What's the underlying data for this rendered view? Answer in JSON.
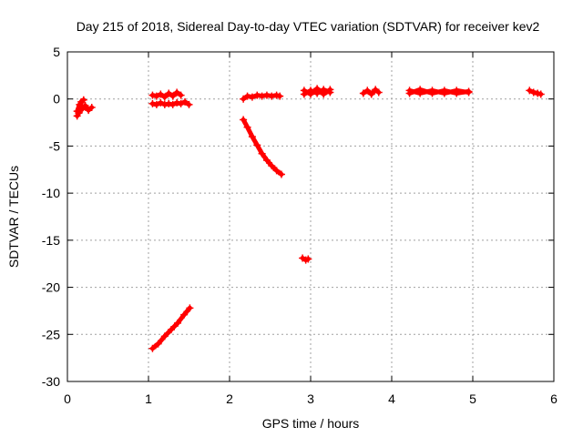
{
  "chart_data": {
    "type": "scatter",
    "title": "Day 215 of 2018, Sidereal Day-to-day VTEC variation (SDTVAR) for receiver kev2",
    "xlabel": "GPS time / hours",
    "ylabel": "SDTVAR / TECUs",
    "xlim": [
      0,
      6
    ],
    "ylim": [
      -30,
      5
    ],
    "xticks": [
      "0",
      "1",
      "2",
      "3",
      "4",
      "5",
      "6"
    ],
    "yticks": [
      "5",
      "0",
      "-5",
      "-10",
      "-15",
      "-20",
      "-25",
      "-30"
    ],
    "grid": true,
    "marker_color": "#ff0000",
    "segments": [
      {
        "x": [
          0.12,
          0.15,
          0.18,
          0.22,
          0.26,
          0.3
        ],
        "y": [
          -1.3,
          -0.6,
          -1.1,
          -0.7,
          -1.2,
          -0.9
        ]
      },
      {
        "x": [
          0.12,
          0.14,
          0.17,
          0.2
        ],
        "y": [
          -1.8,
          -1.5,
          -0.3,
          -0.1
        ]
      },
      {
        "x": [
          1.05,
          1.1,
          1.15,
          1.2,
          1.25,
          1.3,
          1.35,
          1.4,
          1.45,
          1.5
        ],
        "y": [
          -0.5,
          -0.6,
          -0.4,
          -0.6,
          -0.5,
          -0.6,
          -0.4,
          -0.5,
          -0.3,
          -0.6
        ]
      },
      {
        "x": [
          1.05,
          1.1,
          1.15,
          1.2,
          1.25,
          1.3,
          1.35,
          1.4
        ],
        "y": [
          0.4,
          0.3,
          0.5,
          0.2,
          0.6,
          0.3,
          0.7,
          0.4
        ]
      },
      {
        "x": [
          1.05,
          1.12,
          1.2,
          1.28,
          1.36,
          1.44,
          1.51
        ],
        "y": [
          -26.5,
          -26.0,
          -25.2,
          -24.5,
          -23.8,
          -22.9,
          -22.2
        ]
      },
      {
        "x": [
          2.17,
          2.22,
          2.28,
          2.34,
          2.4,
          2.46,
          2.52,
          2.58,
          2.64
        ],
        "y": [
          -2.2,
          -3.0,
          -4.0,
          -4.9,
          -5.8,
          -6.5,
          -7.1,
          -7.6,
          -8.0
        ]
      },
      {
        "x": [
          2.17,
          2.22,
          2.28,
          2.34,
          2.4,
          2.46,
          2.52,
          2.58,
          2.62
        ],
        "y": [
          0.0,
          0.3,
          0.2,
          0.4,
          0.3,
          0.4,
          0.3,
          0.4,
          0.3
        ]
      },
      {
        "x": [
          2.9,
          2.94,
          2.97
        ],
        "y": [
          -16.9,
          -17.1,
          -17.0
        ]
      },
      {
        "x": [
          2.92,
          3.0,
          3.08,
          3.16,
          3.24
        ],
        "y": [
          0.5,
          0.9,
          0.6,
          1.0,
          0.7
        ]
      },
      {
        "x": [
          2.92,
          3.0,
          3.08,
          3.16,
          3.24
        ],
        "y": [
          0.9,
          0.5,
          1.1,
          0.5,
          1.0
        ]
      },
      {
        "x": [
          3.65,
          3.7,
          3.75,
          3.8,
          3.84
        ],
        "y": [
          0.6,
          0.9,
          0.5,
          1.0,
          0.7
        ]
      },
      {
        "x": [
          4.22,
          4.35,
          4.5,
          4.65,
          4.8,
          4.95
        ],
        "y": [
          0.6,
          1.0,
          0.6,
          0.9,
          0.6,
          0.8
        ]
      },
      {
        "x": [
          4.22,
          4.35,
          4.5,
          4.65,
          4.8,
          4.95
        ],
        "y": [
          0.9,
          0.6,
          0.9,
          0.6,
          0.9,
          0.7
        ]
      },
      {
        "x": [
          5.7,
          5.75,
          5.8,
          5.84
        ],
        "y": [
          0.9,
          0.7,
          0.6,
          0.5
        ]
      }
    ]
  }
}
